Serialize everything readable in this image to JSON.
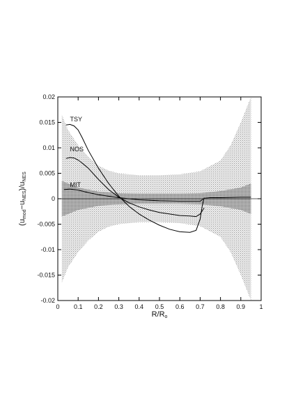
{
  "chart_data": {
    "type": "line",
    "title": "",
    "xlabel": "R/R",
    "xlabel_sub": "o",
    "ylabel": {
      "open": "(",
      "u1": "u",
      "u1_sub": "mod",
      "minus": "−",
      "u2": "u",
      "u2_sub": "NES",
      "close": ")/",
      "u3": "u",
      "u3_sub": "NES"
    },
    "xlim": [
      0,
      1
    ],
    "ylim": [
      -0.02,
      0.02
    ],
    "xticks": [
      0,
      0.1,
      0.2,
      0.3,
      0.4,
      0.5,
      0.6,
      0.7,
      0.8,
      0.9,
      1
    ],
    "xtick_labels": [
      "0",
      "0.1",
      "0.2",
      "0.3",
      "0.4",
      "0.5",
      "0.6",
      "0.7",
      "0.8",
      "0.9",
      "1"
    ],
    "yticks": [
      -0.02,
      -0.015,
      -0.01,
      -0.005,
      0,
      0.005,
      0.01,
      0.015,
      0.02
    ],
    "ytick_labels": [
      "-0.02",
      "-0.015",
      "-0.01",
      "-0.005",
      "0",
      "0.005",
      "0.01",
      "0.015",
      "0.02"
    ],
    "grid": false,
    "legend": "none",
    "uncertainty_bands": {
      "outer": {
        "x": [
          0.02,
          0.05,
          0.1,
          0.15,
          0.2,
          0.25,
          0.3,
          0.4,
          0.5,
          0.6,
          0.7,
          0.8,
          0.85,
          0.9,
          0.95
        ],
        "upper": [
          0.0165,
          0.0135,
          0.0105,
          0.0082,
          0.0065,
          0.0055,
          0.005,
          0.0046,
          0.0046,
          0.0048,
          0.0054,
          0.0075,
          0.0105,
          0.015,
          0.02
        ],
        "lower": [
          -0.0165,
          -0.0135,
          -0.0105,
          -0.0082,
          -0.0065,
          -0.0055,
          -0.005,
          -0.0046,
          -0.0046,
          -0.0048,
          -0.0054,
          -0.0075,
          -0.0105,
          -0.015,
          -0.02
        ]
      },
      "inner": {
        "x": [
          0.02,
          0.1,
          0.2,
          0.3,
          0.4,
          0.5,
          0.6,
          0.7,
          0.8,
          0.9,
          0.95
        ],
        "upper": [
          0.0035,
          0.0022,
          0.0014,
          0.0011,
          0.001,
          0.001,
          0.001,
          0.0011,
          0.0015,
          0.0022,
          0.003
        ],
        "lower": [
          -0.0035,
          -0.0022,
          -0.0014,
          -0.0011,
          -0.001,
          -0.001,
          -0.001,
          -0.0011,
          -0.0015,
          -0.0022,
          -0.003
        ]
      }
    },
    "series": [
      {
        "name": "TSY",
        "x": [
          0.04,
          0.06,
          0.08,
          0.1,
          0.12,
          0.15,
          0.2,
          0.25,
          0.3,
          0.35,
          0.4,
          0.45,
          0.5,
          0.55,
          0.6,
          0.65,
          0.68,
          0.7,
          0.71,
          0.72
        ],
        "y": [
          0.0145,
          0.0146,
          0.0143,
          0.0135,
          0.012,
          0.0095,
          0.006,
          0.003,
          0.0005,
          -0.0015,
          -0.003,
          -0.0042,
          -0.0052,
          -0.006,
          -0.0065,
          -0.0066,
          -0.0062,
          -0.004,
          -0.0015,
          0.0002
        ],
        "label_at": [
          0.06,
          0.0152
        ]
      },
      {
        "name": "NOS",
        "x": [
          0.04,
          0.06,
          0.08,
          0.1,
          0.12,
          0.15,
          0.2,
          0.25,
          0.3,
          0.35,
          0.4,
          0.45,
          0.5,
          0.55,
          0.6,
          0.65,
          0.68,
          0.7,
          0.72
        ],
        "y": [
          0.0079,
          0.0081,
          0.008,
          0.0076,
          0.007,
          0.006,
          0.0038,
          0.0018,
          0.0003,
          -0.0008,
          -0.0016,
          -0.0022,
          -0.0027,
          -0.003,
          -0.0033,
          -0.0034,
          -0.0035,
          -0.003,
          -0.0018
        ],
        "label_at": [
          0.06,
          0.0093
        ]
      },
      {
        "name": "MIT",
        "x": [
          0.03,
          0.06,
          0.1,
          0.15,
          0.2,
          0.3,
          0.4,
          0.5,
          0.6,
          0.7,
          0.72,
          0.75,
          0.8,
          0.9,
          0.95
        ],
        "y": [
          0.0018,
          0.0019,
          0.0017,
          0.0012,
          0.0008,
          0.0002,
          -0.0002,
          -0.0004,
          -0.0005,
          -0.0005,
          0.0001,
          0.0002,
          0.0002,
          0.0003,
          0.0003
        ],
        "label_at": [
          0.06,
          0.0023
        ]
      }
    ]
  }
}
